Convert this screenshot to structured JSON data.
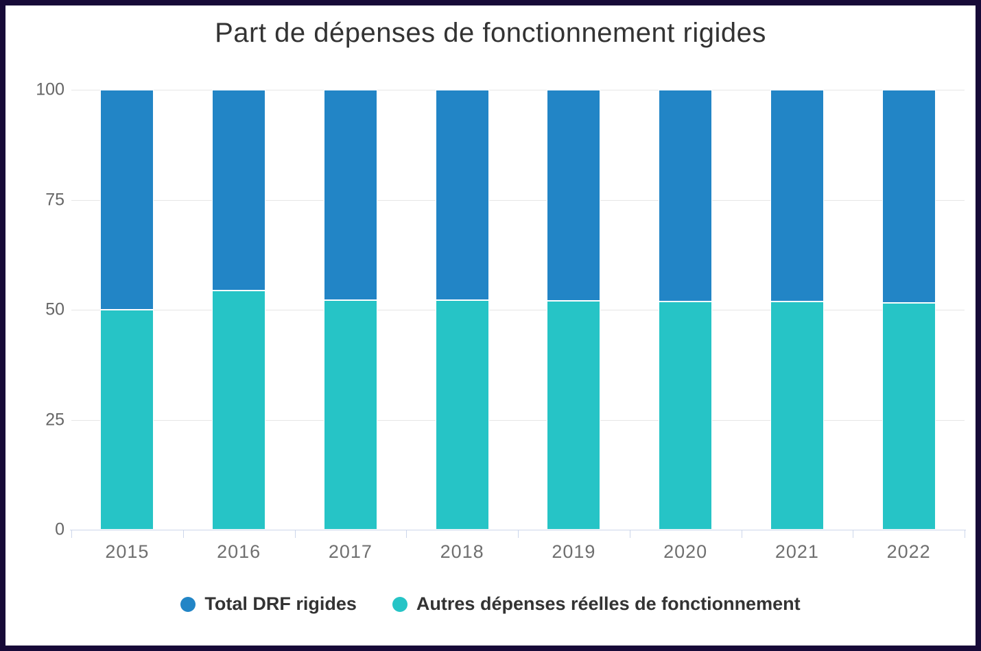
{
  "window": {
    "border_color": "#170A38",
    "background": "#FFFFFF"
  },
  "chart_data": {
    "type": "bar",
    "stacked": true,
    "title": "Part de dépenses de fonctionnement rigides",
    "categories": [
      "2015",
      "2016",
      "2017",
      "2018",
      "2019",
      "2020",
      "2021",
      "2022"
    ],
    "series": [
      {
        "name": "Total DRF rigides",
        "color": "#2285C6",
        "stack_position": "top",
        "values": [
          50,
          45.6,
          47.8,
          47.8,
          48,
          48.1,
          48.2,
          48.5
        ]
      },
      {
        "name": "Autres dépenses réelles de fonctionnement",
        "color": "#26C4C6",
        "stack_position": "bottom",
        "values": [
          50,
          54.4,
          52.2,
          52.2,
          52,
          51.9,
          51.8,
          51.5
        ]
      }
    ],
    "xlabel": "",
    "ylabel": "",
    "ylim": [
      0,
      100
    ],
    "yticks": [
      100,
      75,
      50,
      25,
      0
    ],
    "grid": true,
    "gridline_color": "#E6E6E6",
    "axis_line_color": "#CCD6EB",
    "legend_position": "bottom"
  }
}
